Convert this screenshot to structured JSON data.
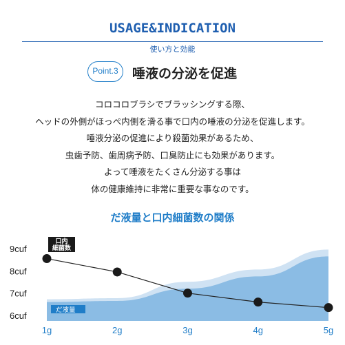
{
  "header": {
    "title": "USAGE&INDICATION",
    "subtitle": "使い方と効能"
  },
  "point": {
    "badge": "Point.3",
    "title": "唾液の分泌を促進"
  },
  "body_lines": [
    "コロコロブラシでブラッシングする際、",
    "ヘッドの外側がほっぺ内側を滑る事で口内の唾液の分泌を促進します。",
    "唾液分泌の促進により殺菌効果があるため、",
    "虫歯予防、歯周病予防、口臭防止にも効果があります。",
    "よって唾液をたくさん分泌する事は",
    "体の健康維持に非常に重要な事なのです。"
  ],
  "colors": {
    "accent": "#1f7dc8",
    "heading": "#1f5fb0",
    "area_light": "#cfe2f3",
    "area_dark": "#7fb5e0",
    "line": "#222222"
  },
  "chart_data": {
    "type": "line",
    "title": "だ液量と口内細菌数の関係",
    "categories": [
      "1g",
      "2g",
      "3g",
      "4g",
      "5g"
    ],
    "y_ticks": [
      "9cuf",
      "8cuf",
      "7cuf",
      "6cuf"
    ],
    "ylim": [
      6,
      9
    ],
    "series": [
      {
        "name": "口内細菌数",
        "type": "line",
        "values": [
          8.55,
          7.95,
          7.0,
          6.6,
          6.35
        ]
      },
      {
        "name": "だ液量",
        "type": "area",
        "values": [
          6.6,
          6.65,
          7.2,
          7.75,
          8.65
        ]
      }
    ],
    "legend_line_label": "口内\n細菌数",
    "legend_area_label": "だ液量"
  }
}
